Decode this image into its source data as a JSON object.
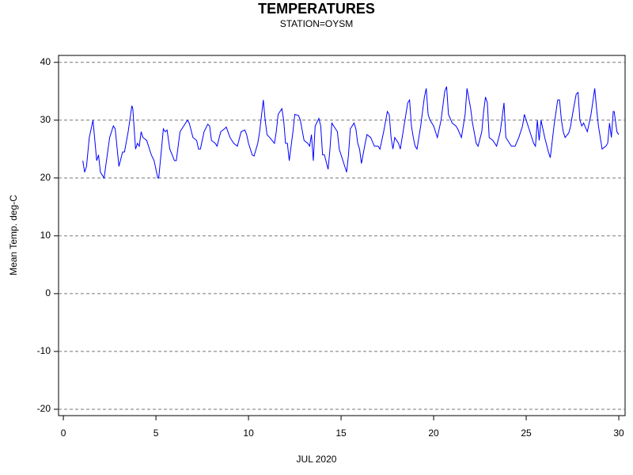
{
  "chart_data": {
    "type": "line",
    "title": "TEMPERATURES",
    "subtitle": "STATION=OYSM",
    "y_label": "Mean Temp. deg-C",
    "x_label": "JUL 2020",
    "xlim": [
      -0.26,
      30.34
    ],
    "xticks": [
      0,
      5,
      10,
      15,
      20,
      25,
      30
    ],
    "ylim": [
      -21.1,
      41.2
    ],
    "yticks": [
      -20,
      -10,
      0,
      10,
      20,
      30,
      40
    ],
    "grid": true,
    "grid_style": "dashed",
    "x": [
      1.05,
      1.15,
      1.25,
      1.4,
      1.6,
      1.8,
      1.9,
      2.0,
      2.2,
      2.5,
      2.7,
      2.8,
      3.0,
      3.2,
      3.3,
      3.5,
      3.7,
      3.75,
      3.9,
      4.0,
      4.1,
      4.2,
      4.3,
      4.5,
      4.75,
      4.9,
      5.1,
      5.15,
      5.3,
      5.4,
      5.5,
      5.6,
      5.75,
      6.0,
      6.1,
      6.3,
      6.5,
      6.7,
      6.8,
      7.0,
      7.2,
      7.3,
      7.4,
      7.6,
      7.8,
      7.9,
      8.0,
      8.2,
      8.3,
      8.5,
      8.7,
      8.8,
      9.0,
      9.2,
      9.4,
      9.6,
      9.8,
      9.9,
      10.0,
      10.2,
      10.3,
      10.5,
      10.6,
      10.8,
      10.9,
      11.0,
      11.2,
      11.4,
      11.5,
      11.6,
      11.8,
      11.9,
      12.0,
      12.1,
      12.2,
      12.4,
      12.5,
      12.7,
      12.8,
      13.0,
      13.2,
      13.3,
      13.4,
      13.5,
      13.6,
      13.8,
      13.9,
      14.0,
      14.1,
      14.3,
      14.4,
      14.5,
      14.7,
      14.8,
      14.9,
      15.0,
      15.3,
      15.4,
      15.5,
      15.7,
      15.8,
      15.9,
      16.0,
      16.1,
      16.3,
      16.4,
      16.6,
      16.8,
      17.0,
      17.1,
      17.3,
      17.5,
      17.6,
      17.7,
      17.8,
      17.9,
      18.1,
      18.2,
      18.4,
      18.6,
      18.7,
      18.8,
      18.9,
      19.0,
      19.1,
      19.2,
      19.3,
      19.5,
      19.6,
      19.7,
      19.8,
      20.0,
      20.1,
      20.2,
      20.4,
      20.6,
      20.7,
      20.8,
      21.0,
      21.2,
      21.3,
      21.5,
      21.7,
      21.8,
      22.0,
      22.1,
      22.3,
      22.4,
      22.6,
      22.7,
      22.8,
      22.9,
      23.0,
      23.2,
      23.4,
      23.6,
      23.8,
      23.9,
      24.0,
      24.2,
      24.4,
      24.6,
      24.8,
      24.9,
      25.1,
      25.2,
      25.4,
      25.5,
      25.6,
      25.7,
      25.8,
      26.0,
      26.2,
      26.3,
      26.5,
      26.7,
      26.8,
      26.9,
      27.0,
      27.1,
      27.3,
      27.4,
      27.5,
      27.7,
      27.8,
      27.9,
      28.0,
      28.1,
      28.3,
      28.5,
      28.7,
      28.8,
      28.9,
      29.1,
      29.3,
      29.4,
      29.5,
      29.6,
      29.7,
      29.75,
      29.9,
      30.0
    ],
    "series": [
      {
        "name": "Mean Temp.",
        "color": "#0000ff",
        "values": [
          23,
          21,
          22,
          27,
          30,
          23,
          24,
          21,
          20,
          27,
          29,
          28.5,
          22,
          24.5,
          24.5,
          28,
          32.5,
          32,
          25,
          26,
          25.5,
          28,
          27,
          26.5,
          24,
          23,
          20,
          20,
          25,
          28.5,
          28,
          28.3,
          25,
          23,
          23,
          28,
          29,
          30,
          29.5,
          27,
          26.5,
          25,
          25,
          28,
          29.3,
          29,
          26.5,
          26,
          25.5,
          28,
          28.5,
          28.8,
          27,
          26,
          25.5,
          28,
          28.3,
          27.5,
          26,
          24,
          23.8,
          26,
          28,
          33.5,
          30,
          27.5,
          26.8,
          26,
          28,
          31,
          32,
          30,
          26,
          26,
          23,
          28,
          31,
          30.8,
          30,
          26.5,
          26,
          25.5,
          27.5,
          23,
          29,
          30.3,
          29,
          24,
          24,
          21.5,
          25,
          29.5,
          28.5,
          28,
          25,
          24,
          21,
          24,
          28.5,
          29.5,
          28.5,
          26,
          25,
          22.5,
          26,
          27.5,
          27,
          25.5,
          25.5,
          25,
          28,
          31.5,
          31,
          27,
          25,
          27,
          26,
          25,
          29,
          33,
          33.5,
          29,
          27,
          25.5,
          25,
          27,
          29,
          34,
          35.5,
          31,
          30,
          29,
          28,
          27,
          30,
          35,
          35.8,
          31,
          29.5,
          29,
          28.5,
          27,
          31,
          35.5,
          32,
          29.5,
          26,
          25.5,
          28,
          31.5,
          34,
          33,
          27,
          26.5,
          25.5,
          28,
          33,
          27,
          26.5,
          25.5,
          25.5,
          27,
          29,
          31,
          29,
          28,
          26,
          25.5,
          30,
          26.5,
          30,
          27,
          24.5,
          23.5,
          29,
          33.5,
          33.5,
          30,
          28,
          27,
          27.8,
          29,
          31,
          34.5,
          34.8,
          30,
          29,
          29.5,
          28,
          31,
          35.5,
          32,
          29,
          25,
          25.5,
          26,
          29.5,
          27,
          31.5,
          31.5,
          28,
          27.5
        ]
      }
    ]
  }
}
